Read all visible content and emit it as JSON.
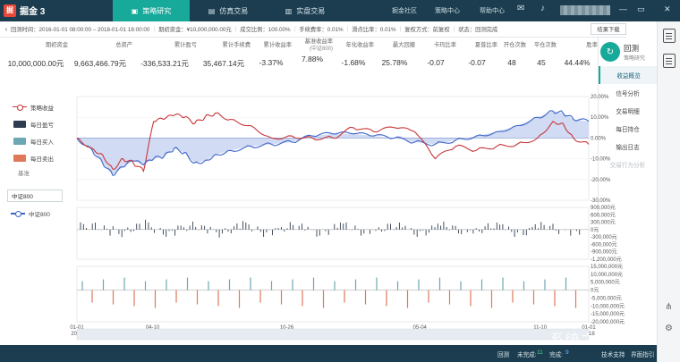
{
  "app": {
    "logo_mark": "掘",
    "name": "掘金 3"
  },
  "top_tabs": [
    {
      "label": "策略研究",
      "icon": "chart-icon",
      "active": true
    },
    {
      "label": "仿真交易",
      "icon": "line-chart-icon",
      "active": false
    },
    {
      "label": "实盘交易",
      "icon": "bar-chart-icon",
      "active": false
    }
  ],
  "top_menu": [
    "掘金社区",
    "策略中心",
    "帮助中心"
  ],
  "info_bar": {
    "back_icon": "‹",
    "items": [
      "回测时间：2016-01-01 08:00:00 – 2018-01-01 16:00:00",
      "期初资金：¥10,000,000.00元",
      "成交比例：100.00%",
      "手续费率：0.01%",
      "滑点比率：0.01%",
      "复权方式：前复权",
      "状态：回测完成"
    ],
    "export_label": "结果下载"
  },
  "metrics": [
    {
      "label": "期初资金",
      "value": "10,000,000.00元"
    },
    {
      "label": "总资产",
      "value": "9,663,466.79元"
    },
    {
      "label": "累计盈亏",
      "value": "-336,533.21元"
    },
    {
      "label": "累计手续费",
      "value": "35,467.14元"
    },
    {
      "label": "累计收益率",
      "value": "-3.37%"
    },
    {
      "label": "基准收益率",
      "sub": "(中证800)",
      "value": "7.88%"
    },
    {
      "label": "年化收益率",
      "value": "-1.68%"
    },
    {
      "label": "最大回撤",
      "value": "25.78%"
    },
    {
      "label": "卡玛比率",
      "value": "-0.07"
    },
    {
      "label": "夏普比率",
      "value": "-0.07"
    },
    {
      "label": "开仓次数",
      "value": "48"
    },
    {
      "label": "平仓次数",
      "value": "45"
    },
    {
      "label": "胜率",
      "value": "44.44%"
    }
  ],
  "right_panel": {
    "title": "回测",
    "subtitle": "策略研究",
    "icon": "refresh-icon",
    "items": [
      {
        "label": "收益概览",
        "state": "active"
      },
      {
        "label": "信号分析",
        "state": "normal"
      },
      {
        "label": "交易明细",
        "state": "normal"
      },
      {
        "label": "每日持仓",
        "state": "normal"
      },
      {
        "label": "输出日志",
        "state": "normal"
      },
      {
        "label": "交易行为分析",
        "state": "disabled"
      }
    ]
  },
  "legend": {
    "items": [
      {
        "label": "策略收益",
        "kind": "line",
        "color": "#c9363a"
      },
      {
        "label": "每日盈亏",
        "kind": "box",
        "color": "#2e3e50"
      },
      {
        "label": "每日买入",
        "kind": "box",
        "color": "#6ba8b4"
      },
      {
        "label": "每日卖出",
        "kind": "box",
        "color": "#e0785a"
      }
    ],
    "benchmark_label": "基准",
    "benchmark_value": "中证800",
    "benchmark_series": {
      "label": "中证800",
      "color": "#3d64c8"
    }
  },
  "chart_data": [
    {
      "type": "line",
      "name": "收益曲线",
      "ylim": [
        -30,
        20
      ],
      "y_ticks": [
        "20.00%",
        "10.00%",
        "0.00%",
        "-10.00%",
        "-20.00%",
        "-30.00%"
      ],
      "series": [
        {
          "name": "策略收益",
          "color": "#c9363a",
          "x": [
            0,
            0.03,
            0.05,
            0.07,
            0.09,
            0.11,
            0.13,
            0.15,
            0.17,
            0.19,
            0.21,
            0.23,
            0.25,
            0.27,
            0.3,
            0.34,
            0.38,
            0.42,
            0.46,
            0.5,
            0.54,
            0.58,
            0.62,
            0.66,
            0.7,
            0.74,
            0.78,
            0.82,
            0.86,
            0.9,
            0.93,
            0.95,
            0.97,
            1.0
          ],
          "values": [
            0,
            -5,
            -8,
            -15,
            -10,
            -12,
            -16,
            8,
            9,
            11,
            10,
            7,
            10,
            12,
            9,
            6,
            0,
            1,
            0,
            0,
            5,
            3,
            5,
            3,
            -10,
            -4,
            -6,
            -4,
            -3,
            0,
            8,
            7,
            0,
            -3
          ]
        },
        {
          "name": "中证800",
          "color": "#3d64c8",
          "x": [
            0,
            0.03,
            0.05,
            0.07,
            0.09,
            0.11,
            0.13,
            0.15,
            0.17,
            0.19,
            0.21,
            0.23,
            0.25,
            0.27,
            0.3,
            0.34,
            0.38,
            0.42,
            0.46,
            0.5,
            0.54,
            0.58,
            0.62,
            0.66,
            0.7,
            0.74,
            0.78,
            0.82,
            0.86,
            0.9,
            0.93,
            0.95,
            0.97,
            1.0
          ],
          "values": [
            0,
            -6,
            -12,
            -18,
            -14,
            -11,
            -13,
            -10,
            -9,
            -5,
            -7,
            -12,
            -11,
            -8,
            -6,
            -4,
            -3,
            -2,
            1,
            2,
            2,
            1,
            0,
            -2,
            -3,
            -1,
            1,
            3,
            6,
            10,
            13,
            12,
            9,
            8
          ]
        }
      ],
      "x_ticks": [
        {
          "label": "01-01",
          "year": "2016"
        },
        {
          "label": "04-10",
          "year": "2016"
        },
        {
          "label": "10-26",
          "year": "2016"
        },
        {
          "label": "05-04",
          "year": "2017"
        },
        {
          "label": "11-10",
          "year": "2017"
        },
        {
          "label": "01-01",
          "year": "2018"
        }
      ]
    },
    {
      "type": "bar",
      "name": "每日盈亏",
      "ylim": [
        -1200000,
        900000
      ],
      "y_ticks": [
        "900,000元",
        "600,000元",
        "300,000元",
        "0元",
        "-300,000元",
        "-600,000元",
        "-900,000元",
        "-1,200,000元"
      ]
    },
    {
      "type": "bar",
      "name": "每日买入/卖出",
      "ylim": [
        -20000000,
        15000000
      ],
      "y_ticks": [
        "15,000,000元",
        "10,000,000元",
        "5,000,000元",
        "0元",
        "-5,000,000元",
        "-10,000,000元",
        "-15,000,000元",
        "-20,000,000元"
      ]
    }
  ],
  "bottom_bar": {
    "mode": "回测",
    "unfinished_label": "未完成:",
    "unfinished_count": "11",
    "finished_label": "完成:",
    "finished_count": "9",
    "support_label": "技术支持",
    "guide_label": "界面指引"
  },
  "watermark": "系统之家"
}
